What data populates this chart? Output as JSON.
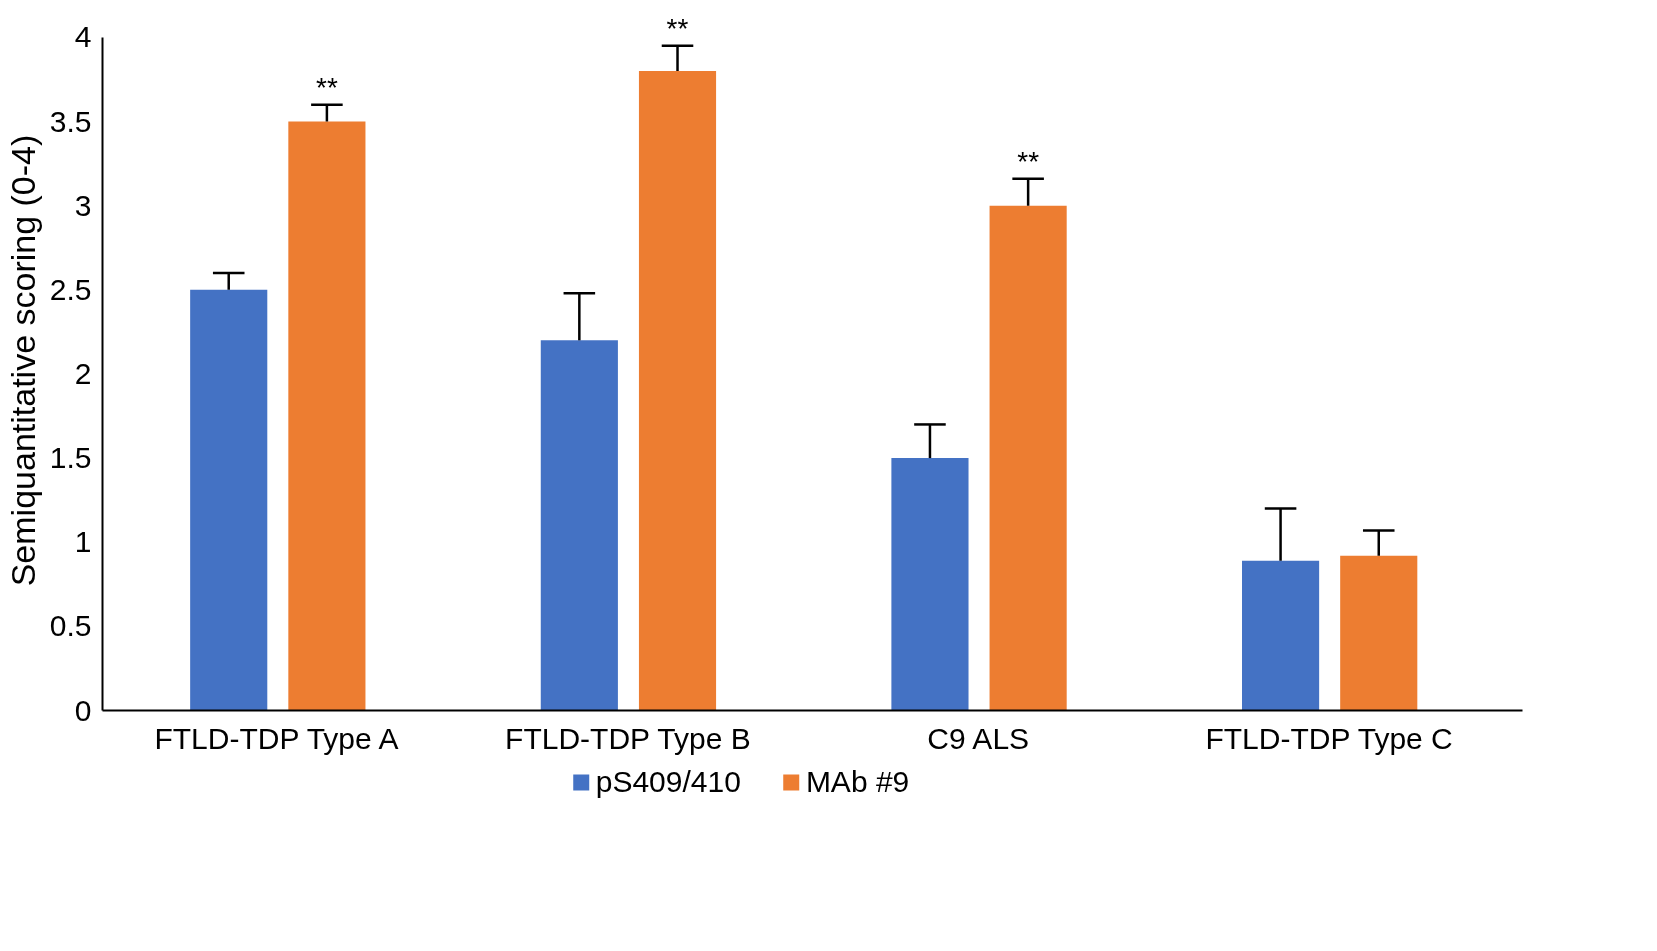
{
  "chart_data": {
    "type": "bar",
    "ylabel": "Semiquantitative scoring (0-4)",
    "categories": [
      "FTLD-TDP Type A",
      "FTLD-TDP Type B",
      "C9 ALS",
      "FTLD-TDP Type C"
    ],
    "series": [
      {
        "name": "pS409/410",
        "color": "#4472c4",
        "values": [
          2.5,
          2.2,
          1.5,
          0.89
        ],
        "errors": [
          [
            2.5,
            2.6
          ],
          [
            2.2,
            2.48
          ],
          [
            1.5,
            1.7
          ],
          [
            0.89,
            1.2
          ]
        ]
      },
      {
        "name": "MAb #9",
        "color": "#ed7d31",
        "values": [
          3.5,
          3.8,
          3.0,
          0.92
        ],
        "errors": [
          [
            3.5,
            3.6
          ],
          [
            3.8,
            3.95
          ],
          [
            3.0,
            3.16
          ],
          [
            0.92,
            1.07
          ]
        ],
        "value_labels": [
          "**",
          "**",
          "**",
          null
        ]
      }
    ],
    "ylim": [
      0,
      4
    ],
    "yticks": [
      0,
      0.5,
      1,
      1.5,
      2,
      2.5,
      3,
      3.5,
      4
    ],
    "grid": false,
    "legend": "bottom"
  }
}
